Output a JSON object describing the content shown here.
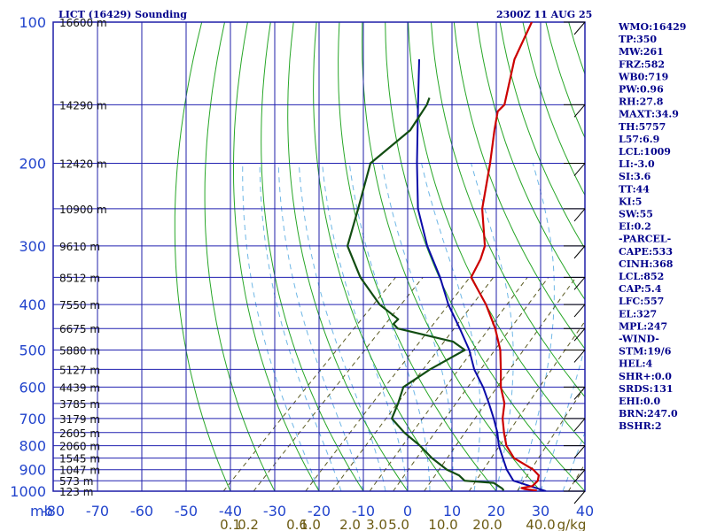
{
  "header": {
    "title": "LICT (16429) Sounding",
    "time": "2300Z 11 AUG 25"
  },
  "chart_data": {
    "type": "line",
    "subtype": "skew-t log-p sounding",
    "pressure_levels": [
      100,
      200,
      300,
      400,
      500,
      600,
      700,
      800,
      900,
      1000
    ],
    "pressure_labels": [
      "100",
      "200",
      "300",
      "400",
      "500",
      "600",
      "700",
      "800",
      "900",
      "1000"
    ],
    "pressure_unit_label": "mb",
    "temperature_ticks": [
      -80,
      -70,
      -60,
      -50,
      -40,
      -30,
      -20,
      -10,
      0,
      10,
      20,
      30,
      40
    ],
    "temperature_tick_labels": [
      "-80",
      "-70",
      "-60",
      "-50",
      "-40",
      "-30",
      "-20",
      "-10",
      "0",
      "10",
      "20",
      "30",
      "40"
    ],
    "height_labels": [
      {
        "p": 100,
        "text": "16600 m"
      },
      {
        "p": 150,
        "text": "14290 m"
      },
      {
        "p": 200,
        "text": "12420 m"
      },
      {
        "p": 250,
        "text": "10900 m"
      },
      {
        "p": 300,
        "text": "9610 m"
      },
      {
        "p": 350,
        "text": "8512 m"
      },
      {
        "p": 400,
        "text": "7550 m"
      },
      {
        "p": 450,
        "text": "6675 m"
      },
      {
        "p": 500,
        "text": "5880 m"
      },
      {
        "p": 550,
        "text": "5127 m"
      },
      {
        "p": 600,
        "text": "4439 m"
      },
      {
        "p": 650,
        "text": "3785 m"
      },
      {
        "p": 700,
        "text": "3179 m"
      },
      {
        "p": 750,
        "text": "2605 m"
      },
      {
        "p": 800,
        "text": "2060 m"
      },
      {
        "p": 850,
        "text": "1545 m"
      },
      {
        "p": 900,
        "text": "1047 m"
      },
      {
        "p": 950,
        "text": "573 m"
      },
      {
        "p": 1000,
        "text": "123 m"
      }
    ],
    "mixing_ratio_labels": [
      "0.1",
      "0.2",
      "0.6",
      "1.0",
      "2.0",
      "3.0",
      "5.0",
      "10.0",
      "20.0",
      "40.0",
      "g/kg"
    ],
    "mixing_ratio_label_t": [
      -40,
      -36,
      -25,
      -22,
      -13,
      -7,
      -2,
      8,
      18,
      30,
      37
    ],
    "temperature": {
      "p": [
        997,
        990,
        985,
        975,
        950,
        925,
        900,
        850,
        800,
        750,
        700,
        650,
        600,
        550,
        500,
        450,
        400,
        350,
        320,
        300,
        250,
        200,
        170,
        155,
        150,
        120,
        100
      ],
      "t": [
        29.0,
        26.0,
        25.0,
        27.0,
        27.0,
        26.0,
        23.5,
        16.5,
        12.0,
        8.5,
        5.0,
        2.0,
        -2.5,
        -6.5,
        -11.0,
        -17.0,
        -24.5,
        -34.0,
        -36.0,
        -38.0,
        -47.0,
        -55.5,
        -62.0,
        -65.5,
        -65.5,
        -73.5,
        -78.0
      ]
    },
    "dewpoint": {
      "p": [
        997,
        990,
        985,
        960,
        950,
        925,
        900,
        850,
        800,
        750,
        700,
        650,
        600,
        550,
        500,
        480,
        450,
        440,
        430,
        400,
        350,
        300,
        250,
        200,
        170,
        150,
        145
      ],
      "t": [
        21.5,
        21.0,
        20.5,
        17.5,
        10.5,
        8.0,
        4.0,
        -2.0,
        -7.5,
        -14.0,
        -20.0,
        -22.0,
        -24.5,
        -22.5,
        -19.0,
        -23.5,
        -39.0,
        -41.0,
        -41.0,
        -48.5,
        -59.0,
        -69.0,
        -75.0,
        -82.5,
        -81.0,
        -83.0,
        -84.0
      ]
    },
    "parcel": {
      "p": [
        1000,
        950,
        900,
        850,
        800,
        750,
        700,
        650,
        600,
        550,
        500,
        450,
        400,
        350,
        300,
        250,
        200,
        150,
        120
      ],
      "t": [
        31.2,
        21.5,
        17.5,
        14.0,
        10.3,
        7.0,
        3.0,
        -1.5,
        -6.5,
        -12.5,
        -18.0,
        -25.0,
        -33.0,
        -41.0,
        -51.0,
        -61.5,
        -72.0,
        -85.0,
        -95.0
      ]
    },
    "wind_barb_levels": [
      100,
      150,
      200,
      250,
      300,
      350,
      400,
      450,
      500,
      600,
      700,
      800,
      900,
      1000
    ],
    "y_range_mb": [
      100,
      1000
    ],
    "x_range_c": [
      -80,
      40
    ]
  },
  "indices": [
    "WMO:16429",
    "TP:350",
    "MW:261",
    "FRZ:582",
    "WB0:719",
    "PW:0.96",
    "RH:27.8",
    "MAXT:34.9",
    "TH:5757",
    "L57:6.9",
    "LCL:1009",
    "LI:-3.0",
    "SI:3.6",
    "TT:44",
    "KI:5",
    "SW:55",
    "EI:0.2",
    "-PARCEL-",
    "CAPE:533",
    "CINH:368",
    "LCL:852",
    "CAP:5.4",
    "LFC:557",
    "EL:327",
    "MPL:247",
    "-WIND-",
    "STM:19/6",
    "HEL:4",
    "SHR+:0.0",
    "SRDS:131",
    "EHI:0.0",
    "BRN:247.0",
    "BSHR:2"
  ],
  "colors": {
    "axes": "#1f1fa8",
    "isobar": "#2121b0",
    "dry_adiabat": "#27a627",
    "moist_adiabat": "#6fb7e6",
    "mixing_ratio": "#5a5a22",
    "temperature": "#cc0000",
    "dewpoint": "#124d12",
    "parcel": "#0a0aa8",
    "text": "#00008b"
  }
}
